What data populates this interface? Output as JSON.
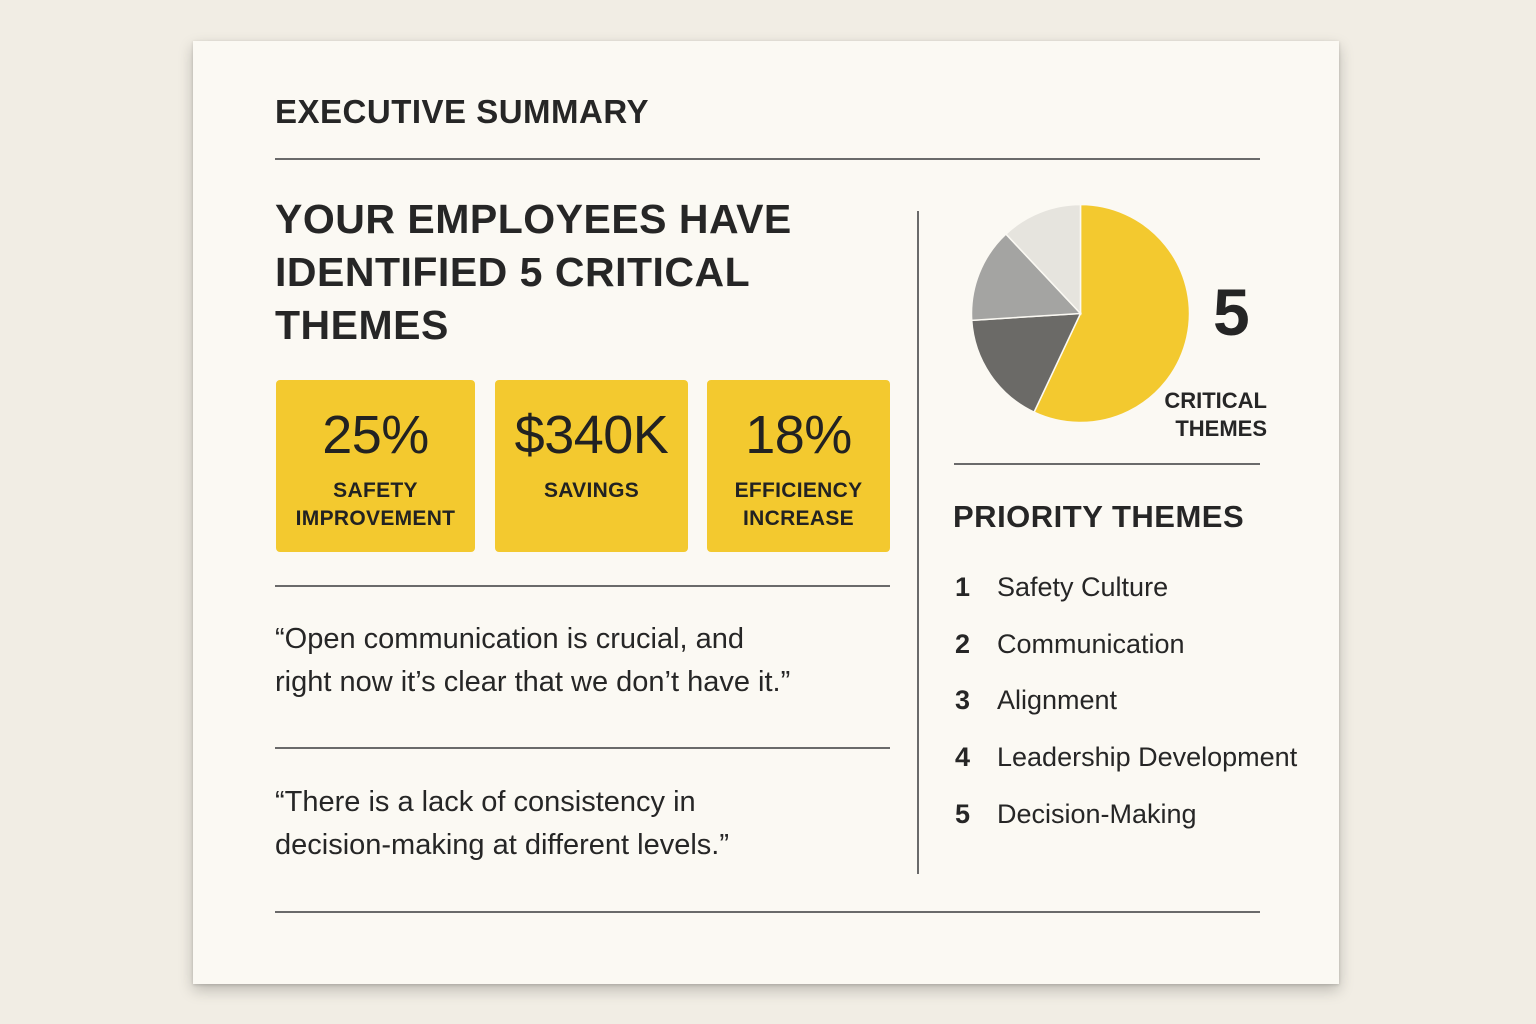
{
  "header": {
    "title": "EXECUTIVE SUMMARY"
  },
  "headline": {
    "line1": "YOUR EMPLOYEES HAVE",
    "line2": "IDENTIFIED 5 CRITICAL",
    "line3": "THEMES"
  },
  "stats": [
    {
      "value": "25%",
      "label_line1": "SAFETY",
      "label_line2": "IMPROVEMENT"
    },
    {
      "value": "$340K",
      "label_line1": "SAVINGS",
      "label_line2": ""
    },
    {
      "value": "18%",
      "label_line1": "EFFICIENCY",
      "label_line2": "INCREASE"
    }
  ],
  "quotes": [
    {
      "line1": "“Open communication is crucial, and",
      "line2": "right now it’s clear that we don’t have it.”"
    },
    {
      "line1": "“There is a lack of consistency in",
      "line2": "decision-making at different levels.”"
    }
  ],
  "summary": {
    "count": "5",
    "label_line1": "CRITICAL",
    "label_line2": "THEMES"
  },
  "colors": {
    "accent": "#f3c92f",
    "dark_gray": "#6b6a67",
    "mid_gray": "#a4a4a2",
    "light_gray": "#e6e4de"
  },
  "chart_data": {
    "type": "pie",
    "title": "",
    "slices": [
      {
        "name": "yellow",
        "value": 57,
        "color": "#f3c92f"
      },
      {
        "name": "dark gray",
        "value": 17,
        "color": "#6b6a67"
      },
      {
        "name": "mid gray",
        "value": 14,
        "color": "#a4a4a2"
      },
      {
        "name": "light gray",
        "value": 12,
        "color": "#e6e4de"
      }
    ]
  },
  "priority": {
    "title": "PRIORITY THEMES",
    "items": [
      {
        "num": "1",
        "label": "Safety Culture"
      },
      {
        "num": "2",
        "label": "Communication"
      },
      {
        "num": "3",
        "label": "Alignment"
      },
      {
        "num": "4",
        "label": "Leadership Development"
      },
      {
        "num": "5",
        "label": "Decision-Making"
      }
    ]
  }
}
